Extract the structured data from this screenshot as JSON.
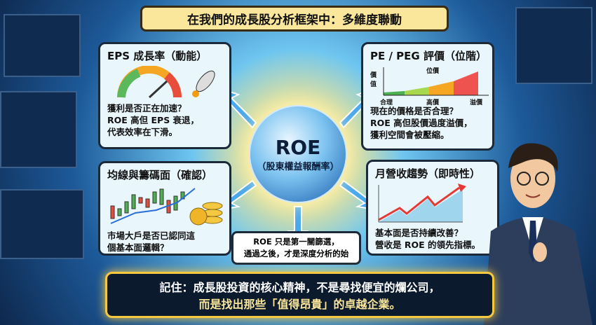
{
  "title": "在我們的成長股分析框架中：多維度聯動",
  "center": {
    "title": "ROE",
    "subtitle": "（股東權益報酬率）"
  },
  "eps": {
    "title": "EPS 成長率（動能）",
    "lines": [
      "獲利是否正在加速？",
      "ROE 高但 EPS 衰退，",
      "代表效率在下滑。"
    ]
  },
  "pe": {
    "title": "PE / PEG 評價（位階）",
    "axis_y": "價值",
    "curve_label": "位價",
    "x_labels": [
      "合理",
      "高價",
      "溢價"
    ],
    "lines": [
      "現在的價格是否合理？",
      "ROE 高但股價過度溢價，",
      "獲利空間會被壓縮。"
    ]
  },
  "ma": {
    "title": "均線與籌碼面（確認）",
    "lines": [
      "市場大戶是否已認同這",
      "個基本面邏輯？"
    ]
  },
  "revenue": {
    "title": "月營收趨勢（即時性）",
    "lines": [
      "基本面是否持續改善？",
      "營收是 ROE 的領先指標。"
    ]
  },
  "note": {
    "lines": [
      "ROE 只是第一關篩選，",
      "通過之後，才是深度分析的始"
    ]
  },
  "bottom": {
    "lines": [
      "記住：成長股投資的核心精神，不是尋找便宜的爛公司，",
      "而是找出那些「值得昂貴」的卓越企業。"
    ]
  },
  "colors": {
    "banner": "#fbe79b",
    "box": "#e9f6fc",
    "accent": "#f5c842"
  }
}
